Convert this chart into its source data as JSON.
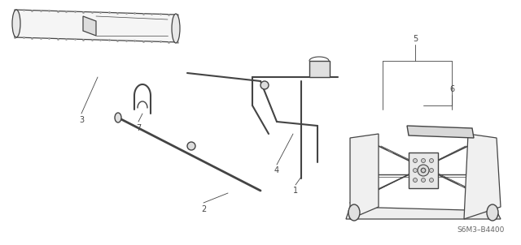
{
  "background_color": "#ffffff",
  "line_color": "#444444",
  "fig_width": 6.4,
  "fig_height": 3.02,
  "dpi": 100,
  "footer_text": "S6M3–B4400",
  "border_color": "#888888",
  "light_gray": "#cccccc",
  "mid_gray": "#aaaaaa",
  "dark_gray": "#666666"
}
